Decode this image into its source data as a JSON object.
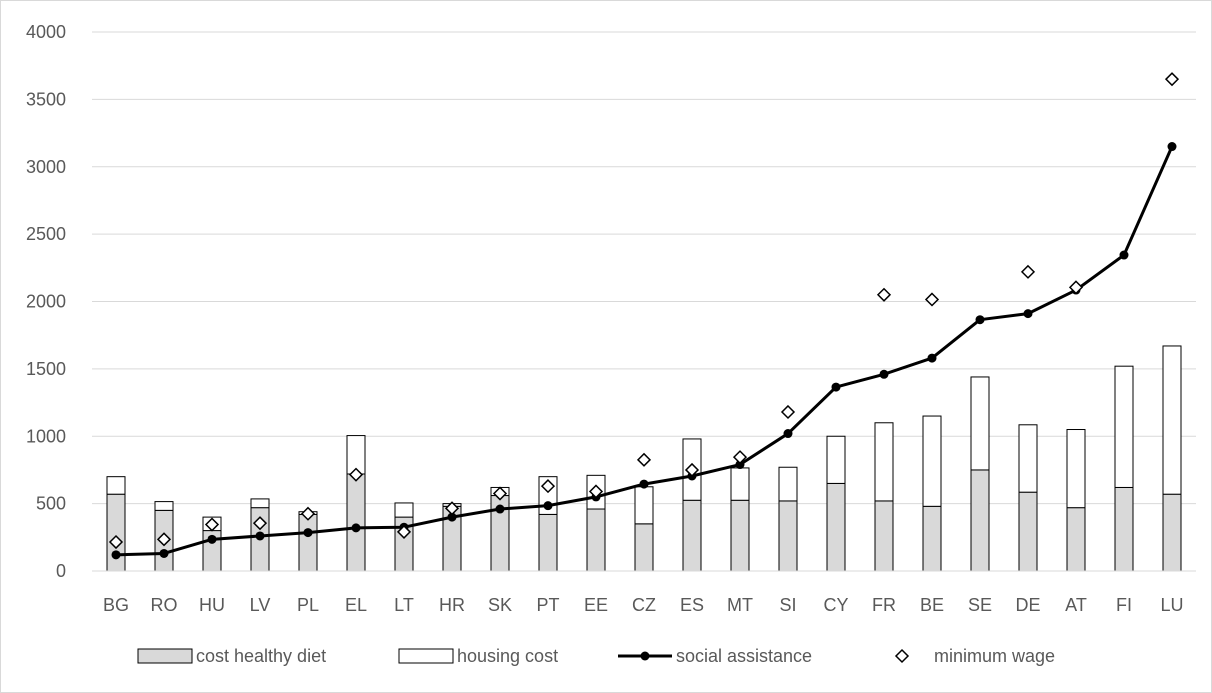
{
  "chart_data": {
    "type": "bar",
    "ylim": [
      0,
      4000
    ],
    "y_ticks": [
      0,
      500,
      1000,
      1500,
      2000,
      2500,
      3000,
      3500,
      4000
    ],
    "grid": true,
    "legend_position": "bottom",
    "categories": [
      "BG",
      "RO",
      "HU",
      "LV",
      "PL",
      "EL",
      "LT",
      "HR",
      "SK",
      "PT",
      "EE",
      "CZ",
      "ES",
      "MT",
      "SI",
      "CY",
      "FR",
      "BE",
      "SE",
      "DE",
      "AT",
      "FI",
      "LU"
    ],
    "series": [
      {
        "name": "cost healthy diet",
        "kind": "stacked-bar",
        "color": "#d9d9d9",
        "values": [
          570,
          450,
          300,
          470,
          420,
          720,
          400,
          480,
          560,
          420,
          460,
          350,
          525,
          525,
          520,
          650,
          520,
          480,
          750,
          585,
          470,
          620,
          570
        ]
      },
      {
        "name": "housing cost",
        "kind": "stacked-bar",
        "color": "#ffffff",
        "values": [
          130,
          65,
          100,
          65,
          20,
          285,
          105,
          20,
          60,
          280,
          250,
          275,
          455,
          240,
          250,
          350,
          580,
          670,
          690,
          500,
          580,
          900,
          1100
        ]
      },
      {
        "name": "social assistance",
        "kind": "line",
        "color": "#000000",
        "values": [
          120,
          130,
          235,
          260,
          285,
          320,
          325,
          400,
          460,
          485,
          550,
          645,
          705,
          790,
          1020,
          1365,
          1460,
          1580,
          1865,
          1910,
          2085,
          2345,
          3150
        ]
      },
      {
        "name": "minimum wage",
        "kind": "marker",
        "color": "#000000",
        "values": [
          215,
          235,
          345,
          355,
          425,
          715,
          290,
          465,
          575,
          630,
          590,
          825,
          750,
          845,
          1180,
          null,
          2050,
          2015,
          null,
          2220,
          2105,
          null,
          3650
        ]
      }
    ]
  }
}
